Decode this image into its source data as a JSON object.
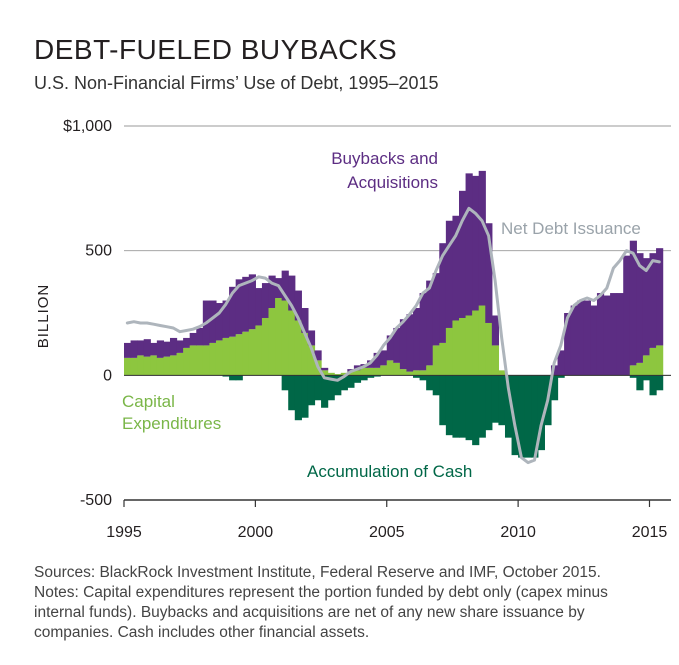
{
  "header": {
    "title": "DEBT-FUELED BUYBACKS",
    "subtitle": "U.S. Non-Financial Firms’ Use of Debt, 1995–2015"
  },
  "notes": [
    "Sources: BlackRock Investment Institute, Federal Reserve and IMF, October 2015.",
    "Notes: Capital expenditures represent the portion funded by debt only (capex minus",
    "internal funds). Buybacks and acquisitions are net of any new share issuance by",
    "companies. Cash includes other financial assets."
  ],
  "colors": {
    "capex": "#8dc63f",
    "buybacks": "#5c2d83",
    "cash": "#006747",
    "net": "#aeb5bc",
    "axis": "#333333",
    "label_capex": "#7ab648",
    "label_cash": "#006747",
    "label_buybacks": "#5c2d83",
    "label_net": "#9aa3aa"
  },
  "chart_data": {
    "type": "area",
    "title": "DEBT-FUELED BUYBACKS",
    "subtitle": "U.S. Non-Financial Firms’ Use of Debt, 1995–2015",
    "ylabel": "BILLION",
    "xlabel": "",
    "xlim": [
      1995,
      2015.4
    ],
    "ylim": [
      -500,
      1000
    ],
    "yticks": [
      {
        "v": 1000,
        "label": "$1,000"
      },
      {
        "v": 500,
        "label": "500"
      },
      {
        "v": 0,
        "label": "0"
      },
      {
        "v": -500,
        "label": "-500"
      }
    ],
    "xticks": [
      {
        "v": 1995,
        "label": "1995"
      },
      {
        "v": 2000,
        "label": "2000"
      },
      {
        "v": 2005,
        "label": "2005"
      },
      {
        "v": 2010,
        "label": "2010"
      },
      {
        "v": 2015,
        "label": "2015"
      }
    ],
    "grid": true,
    "labels": {
      "buybacks_line1": "Buybacks and",
      "buybacks_line2": "Acquisitions",
      "net": "Net Debt Issuance",
      "capex_line1": "Capital",
      "capex_line2": "Expenditures",
      "cash": "Accumulation of Cash"
    },
    "x": [
      1995.0,
      1995.25,
      1995.5,
      1995.75,
      1996.0,
      1996.25,
      1996.5,
      1996.75,
      1997.0,
      1997.25,
      1997.5,
      1997.75,
      1998.0,
      1998.25,
      1998.5,
      1998.75,
      1999.0,
      1999.25,
      1999.5,
      1999.75,
      2000.0,
      2000.25,
      2000.5,
      2000.75,
      2001.0,
      2001.25,
      2001.5,
      2001.75,
      2002.0,
      2002.25,
      2002.5,
      2002.75,
      2003.0,
      2003.25,
      2003.5,
      2003.75,
      2004.0,
      2004.25,
      2004.5,
      2004.75,
      2005.0,
      2005.25,
      2005.5,
      2005.75,
      2006.0,
      2006.25,
      2006.5,
      2006.75,
      2007.0,
      2007.25,
      2007.5,
      2007.75,
      2008.0,
      2008.25,
      2008.5,
      2008.75,
      2009.0,
      2009.25,
      2009.5,
      2009.75,
      2010.0,
      2010.25,
      2010.5,
      2010.75,
      2011.0,
      2011.25,
      2011.5,
      2011.75,
      2012.0,
      2012.25,
      2012.5,
      2012.75,
      2013.0,
      2013.25,
      2013.5,
      2013.75,
      2014.0,
      2014.25,
      2014.5,
      2014.75,
      2015.0,
      2015.25
    ],
    "series": [
      {
        "name": "Capital Expenditures",
        "values": [
          70,
          70,
          80,
          75,
          80,
          70,
          75,
          80,
          90,
          110,
          120,
          120,
          120,
          130,
          140,
          150,
          155,
          165,
          175,
          185,
          200,
          230,
          270,
          310,
          300,
          260,
          220,
          170,
          120,
          60,
          20,
          10,
          5,
          10,
          15,
          20,
          30,
          30,
          30,
          40,
          60,
          50,
          25,
          15,
          20,
          20,
          40,
          120,
          130,
          190,
          220,
          230,
          240,
          260,
          280,
          210,
          120,
          20,
          0,
          0,
          0,
          0,
          0,
          0,
          0,
          0,
          0,
          0,
          0,
          0,
          0,
          0,
          0,
          0,
          0,
          0,
          0,
          40,
          50,
          80,
          110,
          120
        ]
      },
      {
        "name": "Buybacks and Acquisitions",
        "values": [
          60,
          70,
          60,
          70,
          50,
          70,
          60,
          70,
          50,
          40,
          50,
          70,
          180,
          170,
          150,
          150,
          200,
          220,
          220,
          220,
          150,
          140,
          130,
          80,
          120,
          140,
          120,
          100,
          60,
          40,
          10,
          0,
          0,
          0,
          10,
          20,
          15,
          30,
          60,
          60,
          100,
          140,
          200,
          230,
          250,
          310,
          340,
          290,
          400,
          430,
          420,
          510,
          570,
          540,
          540,
          400,
          120,
          0,
          0,
          0,
          0,
          0,
          0,
          0,
          0,
          40,
          100,
          250,
          280,
          300,
          300,
          280,
          330,
          320,
          330,
          330,
          480,
          500,
          440,
          390,
          380,
          390
        ]
      },
      {
        "name": "Accumulation of Cash",
        "values": [
          0,
          0,
          0,
          0,
          0,
          0,
          0,
          0,
          0,
          0,
          0,
          0,
          0,
          0,
          0,
          -5,
          -20,
          -20,
          0,
          0,
          0,
          0,
          0,
          0,
          -60,
          -140,
          -180,
          -170,
          -120,
          -100,
          -130,
          -100,
          -80,
          -60,
          -50,
          -30,
          -20,
          -10,
          -5,
          0,
          0,
          0,
          0,
          0,
          -10,
          -20,
          -60,
          -80,
          -200,
          -240,
          -250,
          -250,
          -260,
          -280,
          -250,
          -220,
          -190,
          -200,
          -250,
          -320,
          -330,
          -330,
          -330,
          -300,
          -200,
          -100,
          -10,
          0,
          0,
          0,
          0,
          0,
          0,
          0,
          0,
          0,
          0,
          -10,
          -60,
          -20,
          -80,
          -60
        ]
      },
      {
        "name": "Net Debt Issuance",
        "values": [
          210,
          215,
          210,
          210,
          205,
          200,
          195,
          190,
          175,
          180,
          185,
          195,
          210,
          230,
          250,
          285,
          330,
          360,
          370,
          380,
          395,
          390,
          370,
          360,
          320,
          280,
          230,
          170,
          110,
          35,
          -10,
          -15,
          -20,
          -5,
          15,
          25,
          35,
          50,
          80,
          120,
          150,
          190,
          215,
          245,
          280,
          330,
          350,
          420,
          480,
          520,
          560,
          620,
          670,
          650,
          620,
          560,
          380,
          150,
          -50,
          -200,
          -330,
          -350,
          -340,
          -200,
          -100,
          50,
          120,
          230,
          280,
          300,
          310,
          300,
          320,
          350,
          430,
          460,
          500,
          490,
          440,
          420,
          460,
          455
        ]
      }
    ]
  }
}
